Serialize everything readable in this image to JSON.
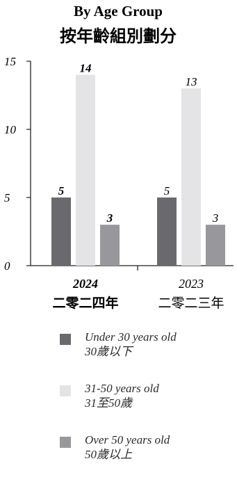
{
  "chart_data": {
    "type": "bar",
    "title": "By Age Group",
    "subtitle": "按年齡組別劃分",
    "categories": [
      {
        "label": "2024",
        "label_zh": "二零二四年",
        "bold": true
      },
      {
        "label": "2023",
        "label_zh": "二零二三年",
        "bold": false
      }
    ],
    "series": [
      {
        "name": "Under 30 years old",
        "name_zh": "30歲以下",
        "color": "#6a6a6e",
        "values": [
          5,
          5
        ]
      },
      {
        "name": "31-50 years old",
        "name_zh": "31至50歲",
        "color": "#e4e4e6",
        "values": [
          14,
          13
        ]
      },
      {
        "name": "Over 50 years old",
        "name_zh": "50歲以上",
        "color": "#98989c",
        "values": [
          3,
          3
        ]
      }
    ],
    "y_ticks": [
      "0",
      "5",
      "10",
      "15"
    ],
    "ylim": [
      0,
      15
    ],
    "grid": false,
    "legend_position": "bottom"
  }
}
